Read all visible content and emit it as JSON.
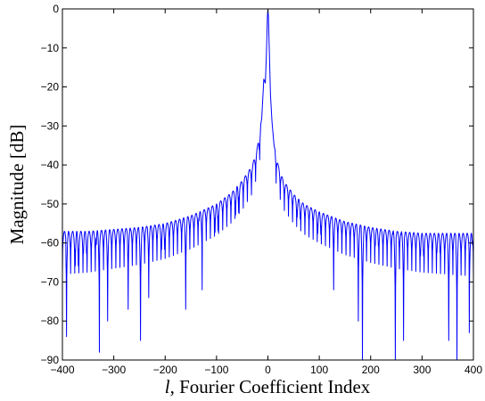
{
  "chart_data": {
    "type": "line",
    "title": "",
    "xlabel_var": "l",
    "xlabel": ", Fourier Coefficient Index",
    "ylabel": "Magnitude [dB]",
    "xlim": [
      -400,
      400
    ],
    "ylim": [
      -90,
      0
    ],
    "xticks": [
      -400,
      -300,
      -200,
      -100,
      0,
      100,
      200,
      300,
      400
    ],
    "yticks": [
      0,
      -10,
      -20,
      -30,
      -40,
      -50,
      -60,
      -70,
      -80,
      -90
    ],
    "grid": false,
    "line_color": "#0000ff",
    "series": [
      {
        "description_points": {
          "x": [
            -400,
            -350,
            -300,
            -250,
            -200,
            -150,
            -100,
            -70,
            -50,
            -30,
            -20,
            -12,
            -8,
            -5,
            -3,
            -1,
            0,
            1,
            3,
            5,
            8,
            12,
            20,
            30,
            50,
            70,
            100,
            150,
            200,
            250,
            300,
            350,
            400
          ],
          "y": [
            -57,
            -57,
            -56.5,
            -56,
            -55,
            -53,
            -50,
            -47,
            -44,
            -40,
            -35,
            -28,
            -18,
            -19,
            -12,
            -2,
            0,
            -2,
            -12,
            -22,
            -29,
            -35,
            -40,
            -44,
            -47.5,
            -50,
            -52,
            -54.5,
            -56,
            -57,
            -57.5,
            -57.5,
            -57.5
          ]
        },
        "lobe_period": 8,
        "nulls": [
          {
            "x": -390,
            "y": -84
          },
          {
            "x": -372,
            "y": -88
          },
          {
            "x": -356,
            "y": -77
          },
          {
            "x": -331,
            "y": -88
          },
          {
            "x": -312,
            "y": -80
          },
          {
            "x": -270,
            "y": -77
          },
          {
            "x": -248,
            "y": -85
          },
          {
            "x": -231,
            "y": -74
          },
          {
            "x": -204,
            "y": -78
          },
          {
            "x": -160,
            "y": -77
          },
          {
            "x": -131,
            "y": -72
          },
          {
            "x": -100,
            "y": -75
          },
          {
            "x": -60,
            "y": -70
          },
          {
            "x": -20,
            "y": -45
          },
          {
            "x": 20,
            "y": -45
          },
          {
            "x": 60,
            "y": -66
          },
          {
            "x": 100,
            "y": -72
          },
          {
            "x": 128,
            "y": -72
          },
          {
            "x": 176,
            "y": -80
          },
          {
            "x": 185,
            "y": -90
          },
          {
            "x": 212,
            "y": -72
          },
          {
            "x": 246,
            "y": -90
          },
          {
            "x": 262,
            "y": -85
          },
          {
            "x": 300,
            "y": -78
          },
          {
            "x": 332,
            "y": -75
          },
          {
            "x": 352,
            "y": -85
          },
          {
            "x": 369,
            "y": -90
          },
          {
            "x": 395,
            "y": -83
          }
        ]
      }
    ]
  }
}
